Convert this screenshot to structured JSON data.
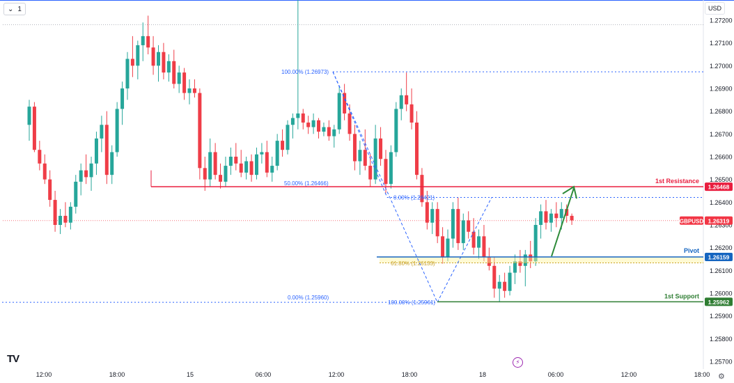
{
  "toolbar": {
    "interval_label": "1",
    "interval_chevron_icon": "chevron-down-icon",
    "currency_label": "USD"
  },
  "brand": {
    "logo_text": "TV"
  },
  "colors": {
    "up": "#26a69a",
    "down": "#ef3d47",
    "resistance": "#e91e3f",
    "pivot": "#1565c0",
    "support": "#2e7d32",
    "fib": "#2962ff",
    "fib_gold": "#c9a227",
    "arrow": "#2e8b3a",
    "price_tag": "#f23645",
    "text": "#131722",
    "grid_dots": "#b2b5be"
  },
  "chart_data": {
    "type": "candlestick",
    "symbol": "GBPUSD",
    "last_price": 1.26319,
    "y_range": [
      1.2569,
      1.2724
    ],
    "y_ticks": [
      "1.27200",
      "1.27100",
      "1.27000",
      "1.26900",
      "1.26800",
      "1.26700",
      "1.26600",
      "1.26500",
      "1.26400",
      "1.26300",
      "1.26200",
      "1.26100",
      "1.26000",
      "1.25900",
      "1.25800",
      "1.25700"
    ],
    "x_range": [
      0,
      248
    ],
    "x_ticks": [
      {
        "label": "12:00",
        "idx": 8
      },
      {
        "label": "18:00",
        "idx": 38
      },
      {
        "label": "15",
        "idx": 68
      },
      {
        "label": "06:00",
        "idx": 98
      },
      {
        "label": "12:00",
        "idx": 128
      },
      {
        "label": "18:00",
        "idx": 158
      },
      {
        "label": "18",
        "idx": 188
      },
      {
        "label": "06:00",
        "idx": 218
      },
      {
        "label": "12:00",
        "idx": 248
      },
      {
        "label": "18:00",
        "idx": 278
      }
    ],
    "candles": [
      [
        1.2674,
        1.2685,
        1.2667,
        1.2682
      ],
      [
        1.2682,
        1.2684,
        1.2662,
        1.2663
      ],
      [
        1.2663,
        1.2667,
        1.2654,
        1.2657
      ],
      [
        1.2657,
        1.2661,
        1.2648,
        1.265
      ],
      [
        1.265,
        1.2654,
        1.2638,
        1.2641
      ],
      [
        1.2641,
        1.2645,
        1.2627,
        1.263
      ],
      [
        1.263,
        1.2637,
        1.2626,
        1.2634
      ],
      [
        1.2634,
        1.264,
        1.2629,
        1.2631
      ],
      [
        1.2631,
        1.264,
        1.2628,
        1.2638
      ],
      [
        1.2638,
        1.2652,
        1.2635,
        1.2649
      ],
      [
        1.2649,
        1.2657,
        1.2643,
        1.2654
      ],
      [
        1.2654,
        1.2661,
        1.2648,
        1.2651
      ],
      [
        1.2651,
        1.266,
        1.2645,
        1.2657
      ],
      [
        1.2657,
        1.2671,
        1.2652,
        1.2668
      ],
      [
        1.2668,
        1.2678,
        1.2662,
        1.2674
      ],
      [
        1.2674,
        1.268,
        1.2648,
        1.2652
      ],
      [
        1.2652,
        1.2665,
        1.2648,
        1.2662
      ],
      [
        1.2662,
        1.2684,
        1.266,
        1.2681
      ],
      [
        1.2681,
        1.2693,
        1.2674,
        1.269
      ],
      [
        1.269,
        1.2706,
        1.2685,
        1.2703
      ],
      [
        1.2703,
        1.2713,
        1.2695,
        1.27
      ],
      [
        1.27,
        1.2711,
        1.2694,
        1.2709
      ],
      [
        1.2709,
        1.2719,
        1.2702,
        1.2713
      ],
      [
        1.2713,
        1.2722,
        1.2705,
        1.2708
      ],
      [
        1.2708,
        1.2713,
        1.2696,
        1.27
      ],
      [
        1.27,
        1.2709,
        1.2693,
        1.2706
      ],
      [
        1.2706,
        1.271,
        1.2694,
        1.2697
      ],
      [
        1.2697,
        1.2705,
        1.2693,
        1.2702
      ],
      [
        1.2702,
        1.2707,
        1.269,
        1.2692
      ],
      [
        1.2692,
        1.27,
        1.2688,
        1.2697
      ],
      [
        1.2697,
        1.2699,
        1.2685,
        1.2688
      ],
      [
        1.2688,
        1.2694,
        1.2683,
        1.269
      ],
      [
        1.269,
        1.2694,
        1.2686,
        1.2688
      ],
      [
        1.2688,
        1.269,
        1.265,
        1.2655
      ],
      [
        1.2655,
        1.266,
        1.2645,
        1.265
      ],
      [
        1.265,
        1.2668,
        1.2647,
        1.2662
      ],
      [
        1.2662,
        1.2666,
        1.265,
        1.2652
      ],
      [
        1.2652,
        1.2657,
        1.2646,
        1.2649
      ],
      [
        1.2649,
        1.266,
        1.2647,
        1.2656
      ],
      [
        1.2656,
        1.2664,
        1.2652,
        1.266
      ],
      [
        1.266,
        1.2666,
        1.2654,
        1.2657
      ],
      [
        1.2657,
        1.2663,
        1.2651,
        1.2653
      ],
      [
        1.2653,
        1.266,
        1.265,
        1.2658
      ],
      [
        1.2658,
        1.2661,
        1.2649,
        1.2652
      ],
      [
        1.2652,
        1.2664,
        1.265,
        1.2661
      ],
      [
        1.2661,
        1.2666,
        1.2657,
        1.2662
      ],
      [
        1.2662,
        1.2667,
        1.2651,
        1.2653
      ],
      [
        1.2653,
        1.266,
        1.2649,
        1.2656
      ],
      [
        1.2656,
        1.267,
        1.2654,
        1.2667
      ],
      [
        1.2667,
        1.2672,
        1.266,
        1.2663
      ],
      [
        1.2663,
        1.2676,
        1.2661,
        1.2674
      ],
      [
        1.2674,
        1.2679,
        1.2668,
        1.2677
      ],
      [
        1.2677,
        1.2782,
        1.2672,
        1.2679
      ],
      [
        1.2679,
        1.2681,
        1.2672,
        1.2675
      ],
      [
        1.2675,
        1.2678,
        1.267,
        1.2673
      ],
      [
        1.2673,
        1.2679,
        1.267,
        1.2676
      ],
      [
        1.2676,
        1.2677,
        1.2668,
        1.2671
      ],
      [
        1.2671,
        1.2675,
        1.2669,
        1.2673
      ],
      [
        1.2673,
        1.2676,
        1.2667,
        1.2669
      ],
      [
        1.2669,
        1.2674,
        1.2664,
        1.2672
      ],
      [
        1.2672,
        1.2691,
        1.267,
        1.2688
      ],
      [
        1.2688,
        1.2692,
        1.2676,
        1.2679
      ],
      [
        1.2679,
        1.2683,
        1.2667,
        1.267
      ],
      [
        1.267,
        1.2674,
        1.2654,
        1.2658
      ],
      [
        1.2658,
        1.2667,
        1.2652,
        1.2663
      ],
      [
        1.2663,
        1.2672,
        1.2654,
        1.2656
      ],
      [
        1.2656,
        1.2661,
        1.2647,
        1.265
      ],
      [
        1.265,
        1.2674,
        1.2648,
        1.2668
      ],
      [
        1.2668,
        1.2673,
        1.2656,
        1.2659
      ],
      [
        1.2659,
        1.2663,
        1.2644,
        1.2648
      ],
      [
        1.2648,
        1.2665,
        1.2646,
        1.2662
      ],
      [
        1.2662,
        1.2684,
        1.266,
        1.2681
      ],
      [
        1.2681,
        1.269,
        1.2676,
        1.2687
      ],
      [
        1.2687,
        1.2697,
        1.268,
        1.2683
      ],
      [
        1.2683,
        1.269,
        1.2672,
        1.2675
      ],
      [
        1.2675,
        1.268,
        1.265,
        1.2652
      ],
      [
        1.2652,
        1.2655,
        1.2638,
        1.264
      ],
      [
        1.264,
        1.2645,
        1.2628,
        1.2631
      ],
      [
        1.2631,
        1.264,
        1.2626,
        1.2637
      ],
      [
        1.2637,
        1.264,
        1.2622,
        1.2625
      ],
      [
        1.2625,
        1.2629,
        1.2613,
        1.2616
      ],
      [
        1.2616,
        1.2628,
        1.2614,
        1.2624
      ],
      [
        1.2624,
        1.264,
        1.262,
        1.2637
      ],
      [
        1.2637,
        1.2642,
        1.2619,
        1.2622
      ],
      [
        1.2622,
        1.2635,
        1.2619,
        1.2632
      ],
      [
        1.2632,
        1.2636,
        1.2624,
        1.2627
      ],
      [
        1.2627,
        1.2633,
        1.2617,
        1.262
      ],
      [
        1.262,
        1.2628,
        1.2615,
        1.2625
      ],
      [
        1.2625,
        1.263,
        1.2614,
        1.2616
      ],
      [
        1.2616,
        1.262,
        1.261,
        1.2612
      ],
      [
        1.2612,
        1.2616,
        1.2598,
        1.2602
      ],
      [
        1.2602,
        1.2608,
        1.2596,
        1.2605
      ],
      [
        1.2605,
        1.2609,
        1.2598,
        1.2601
      ],
      [
        1.2601,
        1.2612,
        1.2599,
        1.2609
      ],
      [
        1.2609,
        1.2617,
        1.2604,
        1.2614
      ],
      [
        1.2614,
        1.2619,
        1.2609,
        1.2612
      ],
      [
        1.2612,
        1.2619,
        1.2603,
        1.2617
      ],
      [
        1.2617,
        1.2623,
        1.2611,
        1.2614
      ],
      [
        1.2614,
        1.2633,
        1.2612,
        1.263
      ],
      [
        1.263,
        1.2639,
        1.2624,
        1.2636
      ],
      [
        1.2636,
        1.2641,
        1.2628,
        1.2631
      ],
      [
        1.2631,
        1.2637,
        1.2627,
        1.2635
      ],
      [
        1.2635,
        1.264,
        1.2629,
        1.2633
      ],
      [
        1.2633,
        1.264,
        1.2628,
        1.2637
      ],
      [
        1.2637,
        1.2639,
        1.2631,
        1.2634
      ],
      [
        1.2634,
        1.2635,
        1.263,
        1.2632
      ]
    ],
    "candle_start_slot": 2,
    "candle_slot_step": 2.12,
    "fib_levels": [
      {
        "label": "100.00% (1.26973)",
        "price": 1.26973
      },
      {
        "label": "50.00% (1.26466)",
        "price": 1.26466
      },
      {
        "label": "0.00% (1.26421)",
        "price": 1.26421
      },
      {
        "label": "61.80% (1.26133)",
        "price": 1.26133
      },
      {
        "label": "0.00% (1.25960)",
        "price": 1.2596
      },
      {
        "label": "100.00% (1.25961)",
        "price": 1.25961
      }
    ],
    "levels": [
      {
        "name": "1st Resistance",
        "price": 1.26468,
        "tag": "1.26468"
      },
      {
        "name": "Pivot",
        "price": 1.26159,
        "tag": "1.26159"
      },
      {
        "name": "1st Support",
        "price": 1.25962,
        "tag": "1.25962"
      }
    ],
    "price_tag": {
      "symbol": "GBPUSD",
      "price": "1.26319"
    }
  }
}
